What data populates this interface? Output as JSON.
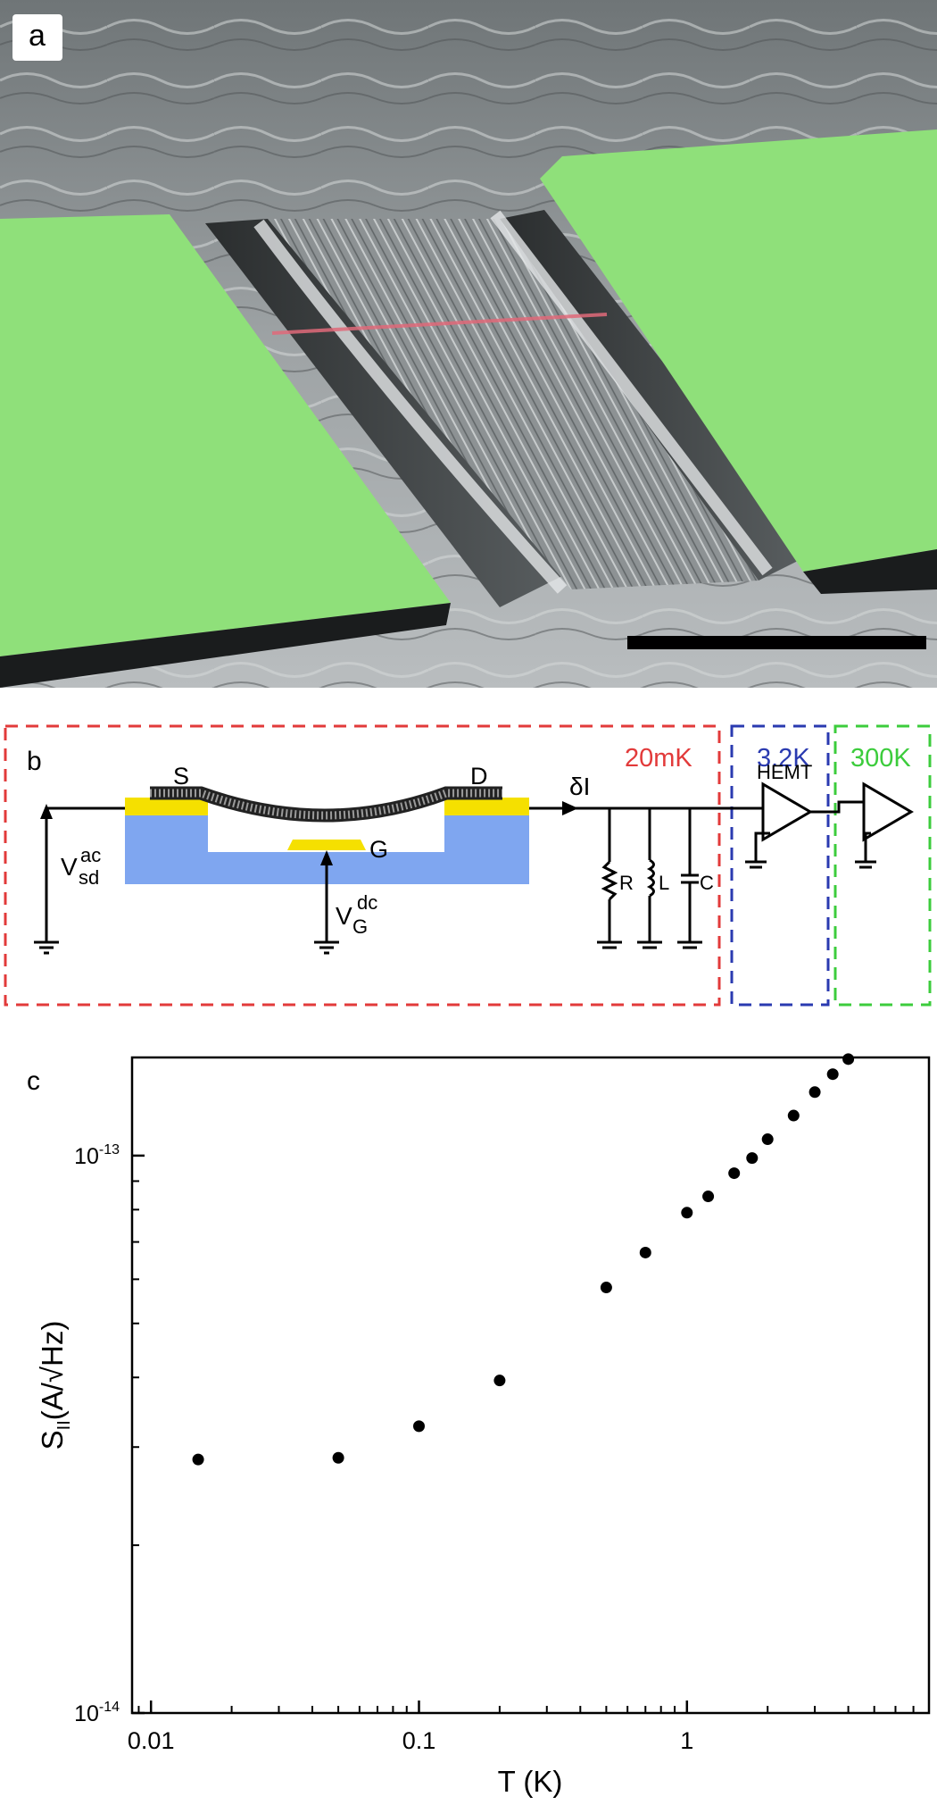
{
  "panel_a": {
    "label": "a",
    "colors": {
      "electrode": "#8fe07a",
      "nanotube": "#e06a7a",
      "scale_bar": "#000000"
    }
  },
  "panel_b": {
    "label": "b",
    "stages": [
      {
        "temperature": "20mK",
        "color": "#e23a3a"
      },
      {
        "temperature": "3.2K",
        "color": "#2a3ab0"
      },
      {
        "temperature": "300K",
        "color": "#3ccc3c"
      }
    ],
    "labels": {
      "source": "S",
      "drain": "D",
      "gate": "G",
      "current": "δI",
      "amplifier": "HEMT",
      "resistor": "R",
      "inductor": "L",
      "capacitor": "C",
      "vsd_main": "V",
      "vsd_sup": "ac",
      "vsd_sub": "sd",
      "vg_main": "V",
      "vg_sup": "dc",
      "vg_sub": "G"
    },
    "colors": {
      "substrate": "#7fa6f0",
      "contacts": "#f5e000"
    }
  },
  "panel_c": {
    "label": "c",
    "chart_data": {
      "type": "scatter",
      "xscale": "log",
      "yscale": "log",
      "xlim": [
        0.0085,
        8
      ],
      "ylim": [
        1e-14,
        1.5e-13
      ],
      "xlabel": "T (K)",
      "ylabel_main": "S",
      "ylabel_sub": "II",
      "ylabel_rest": "(A/√Hz)",
      "x_ticks": [
        {
          "value": 0.01,
          "label": "0.01"
        },
        {
          "value": 0.1,
          "label": "0.1"
        },
        {
          "value": 1,
          "label": "1"
        }
      ],
      "y_ticks": [
        {
          "value": 1e-14,
          "base": "10",
          "exp": "-14"
        },
        {
          "value": 1e-13,
          "base": "10",
          "exp": "-13"
        }
      ],
      "x": [
        0.015,
        0.05,
        0.1,
        0.2,
        0.5,
        0.7,
        1.0,
        1.2,
        1.5,
        1.75,
        2.0,
        2.5,
        3.0,
        3.5,
        4.0
      ],
      "y": [
        2.85e-14,
        2.87e-14,
        3.27e-14,
        3.95e-14,
        5.8e-14,
        6.7e-14,
        7.9e-14,
        8.45e-14,
        9.3e-14,
        9.9e-14,
        1.07e-13,
        1.18e-13,
        1.3e-13,
        1.4e-13,
        1.49e-13
      ],
      "grid": false,
      "marker_color": "#000000"
    }
  }
}
